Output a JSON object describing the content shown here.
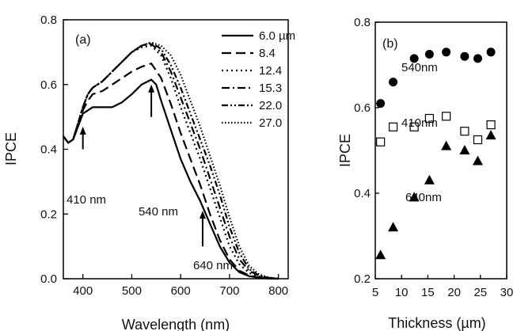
{
  "chart_data": [
    {
      "panel": "(a)",
      "type": "line",
      "xlabel": "Wavelength (nm)",
      "ylabel": "IPCE",
      "xlim": [
        360,
        820
      ],
      "ylim": [
        0.0,
        0.8
      ],
      "xticks": [
        "400",
        "500",
        "600",
        "700",
        "800"
      ],
      "yticks": [
        "0.0",
        "0.2",
        "0.4",
        "0.6",
        "0.8"
      ],
      "legend_placement": "top-right",
      "series": [
        {
          "name": "6.0 µm",
          "dash": "solid",
          "x": [
            360,
            370,
            380,
            390,
            400,
            410,
            420,
            440,
            460,
            480,
            500,
            520,
            540,
            550,
            560,
            580,
            600,
            620,
            640,
            660,
            680,
            700,
            720,
            740,
            760,
            780,
            800
          ],
          "y": [
            0.44,
            0.42,
            0.43,
            0.47,
            0.51,
            0.52,
            0.53,
            0.53,
            0.53,
            0.545,
            0.57,
            0.6,
            0.615,
            0.6,
            0.55,
            0.46,
            0.37,
            0.3,
            0.24,
            0.17,
            0.1,
            0.05,
            0.02,
            0.008,
            0.003,
            0.001,
            0.0
          ]
        },
        {
          "name": "8.4",
          "dash": "long-dash",
          "x": [
            360,
            370,
            380,
            390,
            400,
            410,
            420,
            440,
            460,
            480,
            500,
            520,
            540,
            560,
            580,
            600,
            620,
            640,
            660,
            680,
            700,
            720,
            740,
            760,
            780,
            800
          ],
          "y": [
            0.44,
            0.42,
            0.43,
            0.47,
            0.52,
            0.55,
            0.57,
            0.58,
            0.6,
            0.62,
            0.64,
            0.655,
            0.665,
            0.62,
            0.54,
            0.45,
            0.37,
            0.29,
            0.2,
            0.12,
            0.06,
            0.025,
            0.01,
            0.004,
            0.001,
            0.0
          ]
        },
        {
          "name": "12.4",
          "dash": "dot",
          "x": [
            360,
            370,
            380,
            390,
            400,
            410,
            420,
            440,
            460,
            480,
            500,
            520,
            540,
            560,
            580,
            600,
            620,
            640,
            660,
            680,
            700,
            720,
            740,
            760,
            780,
            800
          ],
          "y": [
            0.44,
            0.42,
            0.43,
            0.48,
            0.53,
            0.57,
            0.59,
            0.61,
            0.64,
            0.67,
            0.7,
            0.715,
            0.72,
            0.69,
            0.62,
            0.53,
            0.45,
            0.37,
            0.28,
            0.19,
            0.1,
            0.045,
            0.018,
            0.007,
            0.002,
            0.0
          ]
        },
        {
          "name": "15.3",
          "dash": "dash-dot",
          "x": [
            360,
            370,
            380,
            390,
            400,
            410,
            420,
            440,
            460,
            480,
            500,
            520,
            540,
            560,
            580,
            600,
            620,
            640,
            660,
            680,
            700,
            720,
            740,
            760,
            780,
            800
          ],
          "y": [
            0.44,
            0.42,
            0.43,
            0.48,
            0.53,
            0.57,
            0.59,
            0.61,
            0.64,
            0.67,
            0.7,
            0.72,
            0.725,
            0.7,
            0.64,
            0.56,
            0.48,
            0.4,
            0.31,
            0.22,
            0.13,
            0.06,
            0.025,
            0.009,
            0.003,
            0.0
          ]
        },
        {
          "name": "22.0",
          "dash": "dash-dot-dot",
          "x": [
            360,
            370,
            380,
            390,
            400,
            410,
            420,
            440,
            460,
            480,
            500,
            520,
            540,
            560,
            580,
            600,
            620,
            640,
            660,
            680,
            700,
            720,
            740,
            760,
            780,
            800
          ],
          "y": [
            0.44,
            0.42,
            0.43,
            0.48,
            0.53,
            0.57,
            0.59,
            0.61,
            0.64,
            0.67,
            0.7,
            0.72,
            0.73,
            0.71,
            0.66,
            0.59,
            0.51,
            0.43,
            0.35,
            0.26,
            0.16,
            0.08,
            0.03,
            0.01,
            0.003,
            0.0
          ]
        },
        {
          "name": "27.0",
          "dash": "short-dot",
          "x": [
            360,
            370,
            380,
            390,
            400,
            410,
            420,
            440,
            460,
            480,
            500,
            520,
            540,
            560,
            580,
            600,
            620,
            640,
            660,
            680,
            700,
            720,
            740,
            760,
            780,
            800
          ],
          "y": [
            0.44,
            0.42,
            0.43,
            0.48,
            0.53,
            0.57,
            0.59,
            0.61,
            0.64,
            0.67,
            0.7,
            0.72,
            0.73,
            0.72,
            0.69,
            0.63,
            0.55,
            0.47,
            0.38,
            0.29,
            0.19,
            0.1,
            0.04,
            0.014,
            0.004,
            0.0
          ]
        }
      ],
      "annotations": [
        {
          "text": "410 nm",
          "x": 400,
          "y": 0.47
        },
        {
          "text": "540 nm",
          "x": 540,
          "y": 0.6
        },
        {
          "text": "640 nm",
          "x": 645,
          "y": 0.21
        }
      ]
    },
    {
      "panel": "(b)",
      "type": "scatter",
      "xlabel": "Thickness (µm)",
      "ylabel": "IPCE",
      "xlim": [
        5,
        30
      ],
      "ylim": [
        0.2,
        0.8
      ],
      "xticks": [
        "5",
        "10",
        "15",
        "20",
        "25",
        "30"
      ],
      "yticks": [
        "0.2",
        "0.4",
        "0.6",
        "0.8"
      ],
      "series": [
        {
          "name": "540nm",
          "marker": "filled-circle",
          "x": [
            6.0,
            8.4,
            12.4,
            15.3,
            18.5,
            22.0,
            24.5,
            27.0
          ],
          "y": [
            0.61,
            0.66,
            0.715,
            0.725,
            0.73,
            0.72,
            0.715,
            0.73
          ]
        },
        {
          "name": "410nm",
          "marker": "open-square",
          "x": [
            6.0,
            8.4,
            12.4,
            15.3,
            18.5,
            22.0,
            24.5,
            27.0
          ],
          "y": [
            0.52,
            0.555,
            0.555,
            0.575,
            0.58,
            0.545,
            0.525,
            0.56
          ]
        },
        {
          "name": "640nm",
          "marker": "filled-triangle",
          "x": [
            6.0,
            8.4,
            12.4,
            15.3,
            18.5,
            22.0,
            24.5,
            27.0
          ],
          "y": [
            0.255,
            0.32,
            0.39,
            0.43,
            0.51,
            0.5,
            0.475,
            0.535
          ]
        }
      ]
    }
  ]
}
